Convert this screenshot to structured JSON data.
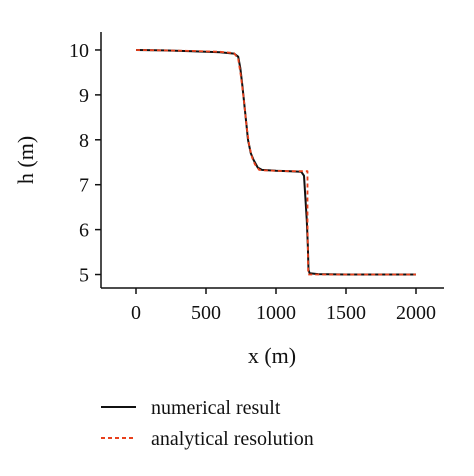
{
  "chart_data": {
    "type": "line",
    "xlabel": "x (m)",
    "ylabel": "h (m)",
    "xlim": [
      -250,
      2200
    ],
    "ylim": [
      4.7,
      10.4
    ],
    "x_ticks": [
      0,
      500,
      1000,
      1500,
      2000
    ],
    "y_ticks": [
      5,
      6,
      7,
      8,
      9,
      10
    ],
    "x_tick_labels": [
      "0",
      "500",
      "1000",
      "1500",
      "2000"
    ],
    "y_tick_labels": [
      "5",
      "6",
      "7",
      "8",
      "9",
      "10"
    ],
    "grid": false,
    "legend_position": "bottom",
    "series": [
      {
        "name": "numerical result",
        "color": "#111111",
        "style": "solid",
        "points": [
          [
            0,
            10.0
          ],
          [
            200,
            9.99
          ],
          [
            400,
            9.97
          ],
          [
            600,
            9.95
          ],
          [
            700,
            9.92
          ],
          [
            730,
            9.85
          ],
          [
            745,
            9.6
          ],
          [
            760,
            9.2
          ],
          [
            780,
            8.6
          ],
          [
            800,
            8.0
          ],
          [
            820,
            7.7
          ],
          [
            840,
            7.55
          ],
          [
            870,
            7.38
          ],
          [
            900,
            7.33
          ],
          [
            1000,
            7.31
          ],
          [
            1100,
            7.3
          ],
          [
            1180,
            7.29
          ],
          [
            1200,
            7.2
          ],
          [
            1210,
            6.7
          ],
          [
            1220,
            6.2
          ],
          [
            1228,
            5.6
          ],
          [
            1232,
            5.1
          ],
          [
            1240,
            5.03
          ],
          [
            1300,
            5.01
          ],
          [
            1500,
            5.0
          ],
          [
            2000,
            5.0
          ]
        ]
      },
      {
        "name": "analytical resolution",
        "color": "#e8401c",
        "style": "dashed",
        "points": [
          [
            0,
            10.0
          ],
          [
            200,
            9.99
          ],
          [
            400,
            9.98
          ],
          [
            600,
            9.96
          ],
          [
            700,
            9.93
          ],
          [
            730,
            9.8
          ],
          [
            750,
            9.4
          ],
          [
            770,
            8.9
          ],
          [
            790,
            8.3
          ],
          [
            810,
            7.85
          ],
          [
            830,
            7.6
          ],
          [
            850,
            7.45
          ],
          [
            880,
            7.33
          ],
          [
            900,
            7.32
          ],
          [
            1000,
            7.31
          ],
          [
            1100,
            7.3
          ],
          [
            1225,
            7.3
          ],
          [
            1225,
            6.2
          ],
          [
            1230,
            5.0
          ],
          [
            1500,
            5.0
          ],
          [
            2000,
            5.0
          ]
        ]
      }
    ]
  },
  "legend": {
    "items": [
      {
        "label": "numerical result",
        "color": "#111111",
        "style": "solid"
      },
      {
        "label": "analytical resolution",
        "color": "#e8401c",
        "style": "dashed"
      }
    ]
  }
}
